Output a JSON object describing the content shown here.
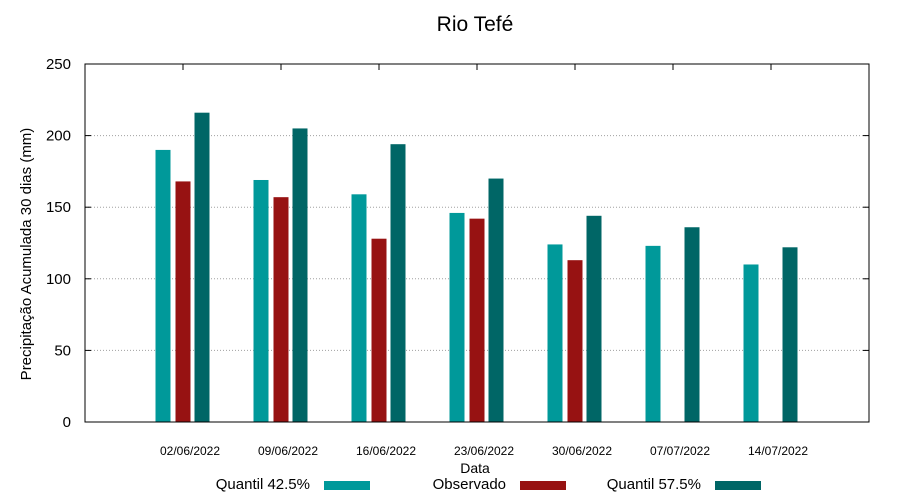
{
  "chart_data": {
    "type": "bar",
    "title": "Rio Tefé",
    "xlabel": "Data",
    "ylabel": "Precipitação Acumulada 30 dias (mm)",
    "ylim": [
      0,
      250
    ],
    "yticks": [
      0,
      50,
      100,
      150,
      200,
      250
    ],
    "grid": true,
    "legend_position": "bottom",
    "categories": [
      "02/06/2022",
      "09/06/2022",
      "16/06/2022",
      "23/06/2022",
      "30/06/2022",
      "07/07/2022",
      "14/07/2022"
    ],
    "series": [
      {
        "name": "Quantil 42.5%",
        "color": "#00999a",
        "values": [
          190,
          169,
          159,
          146,
          124,
          123,
          110
        ]
      },
      {
        "name": "Observado",
        "color": "#971212",
        "values": [
          168,
          157,
          128,
          142,
          113,
          null,
          null
        ]
      },
      {
        "name": "Quantil 57.5%",
        "color": "#006666",
        "values": [
          216,
          205,
          194,
          170,
          144,
          136,
          122
        ]
      }
    ]
  }
}
